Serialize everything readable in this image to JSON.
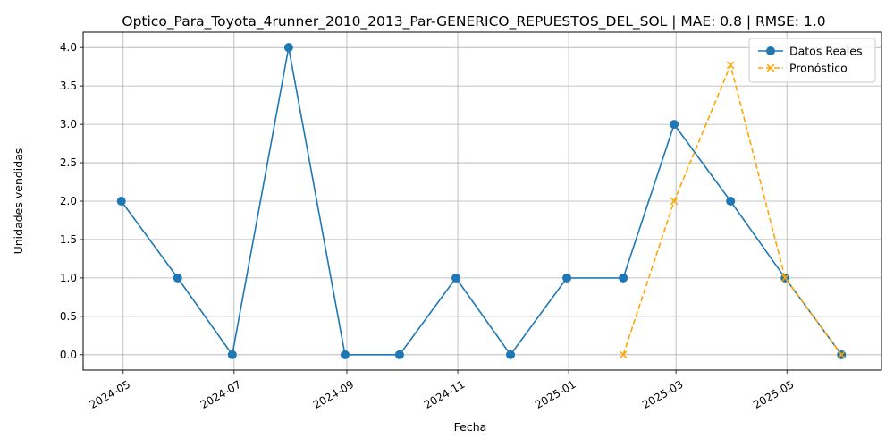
{
  "chart_data": {
    "type": "line",
    "title": "Optico_Para_Toyota_4runner_2010_2013_Par-GENERICO_REPUESTOS_DEL_SOL | MAE: 0.8 | RMSE: 1.0",
    "xlabel": "Fecha",
    "ylabel": "Unidades vendidas",
    "xlim": [
      "2024-04-09",
      "2025-06-22"
    ],
    "ylim": [
      -0.2,
      4.2
    ],
    "grid": true,
    "legend_position": "top-right",
    "x_ticks": [
      {
        "value": "2024-05-01",
        "label": "2024-05"
      },
      {
        "value": "2024-07-01",
        "label": "2024-07"
      },
      {
        "value": "2024-09-01",
        "label": "2024-09"
      },
      {
        "value": "2024-11-01",
        "label": "2024-11"
      },
      {
        "value": "2025-01-01",
        "label": "2025-01"
      },
      {
        "value": "2025-03-01",
        "label": "2025-03"
      },
      {
        "value": "2025-05-01",
        "label": "2025-05"
      }
    ],
    "y_ticks": [
      {
        "value": 0.0,
        "label": "0.0"
      },
      {
        "value": 0.5,
        "label": "0.5"
      },
      {
        "value": 1.0,
        "label": "1.0"
      },
      {
        "value": 1.5,
        "label": "1.5"
      },
      {
        "value": 2.0,
        "label": "2.0"
      },
      {
        "value": 2.5,
        "label": "2.5"
      },
      {
        "value": 3.0,
        "label": "3.0"
      },
      {
        "value": 3.5,
        "label": "3.5"
      },
      {
        "value": 4.0,
        "label": "4.0"
      }
    ],
    "series": [
      {
        "name": "Datos Reales",
        "color": "#1f77b4",
        "line_style": "solid",
        "marker": "circle",
        "x": [
          "2024-04-30",
          "2024-05-31",
          "2024-06-30",
          "2024-07-31",
          "2024-08-31",
          "2024-09-30",
          "2024-10-31",
          "2024-11-30",
          "2024-12-31",
          "2025-01-31",
          "2025-02-28",
          "2025-03-31",
          "2025-04-30",
          "2025-05-31"
        ],
        "y": [
          2,
          1,
          0,
          4,
          0,
          0,
          1,
          0,
          1,
          1,
          3,
          2,
          1,
          0
        ]
      },
      {
        "name": "Pronóstico",
        "color": "#ffa500",
        "line_style": "dashed",
        "marker": "x",
        "x": [
          "2025-01-31",
          "2025-02-28",
          "2025-03-31",
          "2025-04-30",
          "2025-05-31"
        ],
        "y": [
          0,
          2,
          3.77,
          1,
          0
        ]
      }
    ]
  }
}
